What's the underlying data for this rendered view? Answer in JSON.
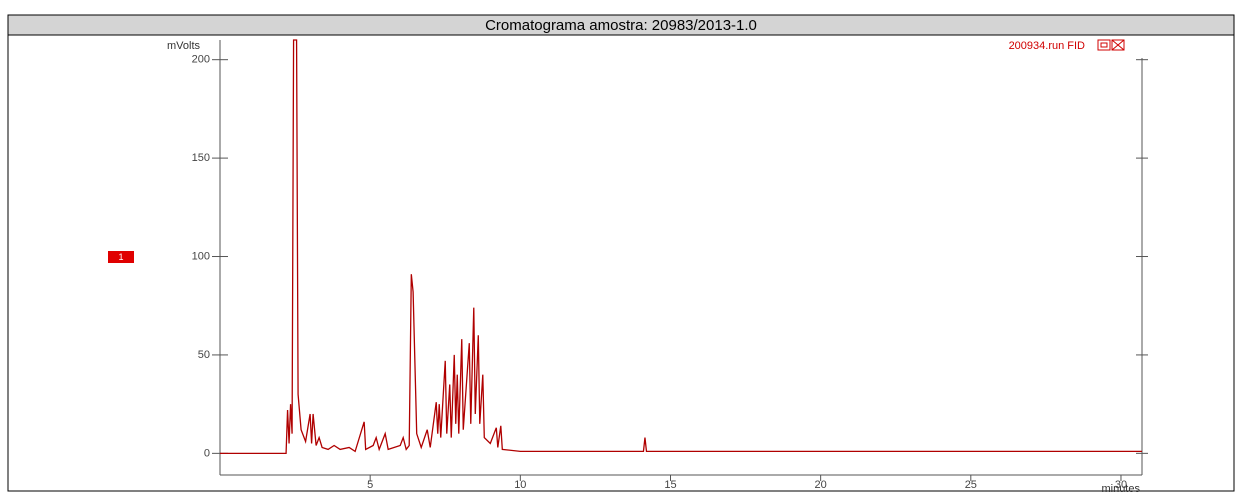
{
  "title": "Cromatograma amostra: 20983/2013-1.0",
  "marker_label": "1",
  "chart_data": {
    "type": "line",
    "y_label": "mVolts",
    "x_label": "minutes",
    "xlim": [
      0,
      30.7
    ],
    "ylim": [
      -11,
      210
    ],
    "xticks": [
      5,
      10,
      15,
      20,
      25,
      30
    ],
    "yticks": [
      0,
      50,
      100,
      150,
      200
    ],
    "x": [
      0,
      2.2,
      2.25,
      2.3,
      2.35,
      2.4,
      2.45,
      2.55,
      2.6,
      2.7,
      2.85,
      3.0,
      3.05,
      3.1,
      3.2,
      3.3,
      3.4,
      3.6,
      3.8,
      4.0,
      4.3,
      4.5,
      4.8,
      4.85,
      5.1,
      5.2,
      5.3,
      5.5,
      5.6,
      6.0,
      6.1,
      6.2,
      6.3,
      6.37,
      6.43,
      6.55,
      6.7,
      6.9,
      7.0,
      7.2,
      7.25,
      7.3,
      7.35,
      7.5,
      7.55,
      7.65,
      7.7,
      7.8,
      7.85,
      7.9,
      7.95,
      8.05,
      8.1,
      8.3,
      8.35,
      8.45,
      8.5,
      8.6,
      8.65,
      8.75,
      8.8,
      9.0,
      9.2,
      9.25,
      9.35,
      9.4,
      10,
      12,
      14.1,
      14.15,
      14.2,
      20,
      30.7
    ],
    "series": [
      {
        "name": "200934.run FID",
        "color": "#b00000",
        "values": [
          0,
          0,
          22,
          5,
          25,
          10,
          210,
          210,
          30,
          12,
          6,
          20,
          5,
          20,
          4,
          8,
          3,
          2,
          4,
          2,
          3,
          1,
          16,
          2,
          4,
          8,
          2,
          10,
          2,
          4,
          8,
          2,
          4,
          91,
          82,
          10,
          3,
          12,
          3,
          26,
          10,
          25,
          8,
          47,
          10,
          35,
          8,
          50,
          15,
          40,
          10,
          58,
          12,
          56,
          15,
          74,
          20,
          60,
          15,
          40,
          8,
          5,
          13,
          3,
          14,
          2,
          1,
          1,
          1,
          8,
          1,
          1,
          1
        ]
      }
    ]
  }
}
